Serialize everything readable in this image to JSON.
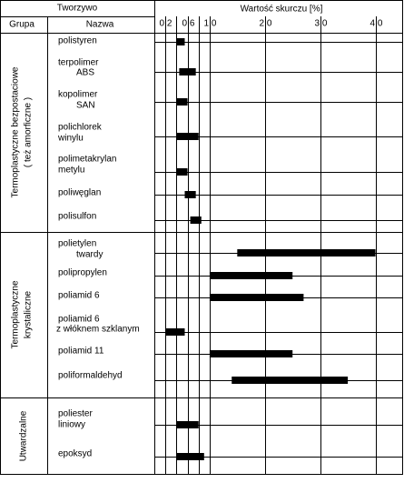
{
  "chart_data": {
    "type": "range-bar",
    "header": {
      "material": "Tworzywo",
      "group": "Grupa",
      "name": "Nazwa",
      "value_title": "Wartość skurczu [%]"
    },
    "xlim": [
      0,
      4.5
    ],
    "xticks": [
      {
        "value": 0.2,
        "label": "0,2"
      },
      0.4,
      {
        "value": 0.6,
        "label": "0,6"
      },
      0.8,
      {
        "value": 1.0,
        "label": "1,0"
      },
      {
        "value": 2.0,
        "label": "2,0"
      },
      {
        "value": 3.0,
        "label": "3,0"
      },
      {
        "value": 4.0,
        "label": "4,0"
      }
    ],
    "hidden_tick_labels": [
      0.4,
      0.8
    ],
    "color": "#000000",
    "groups": [
      {
        "label": [
          "Termoplastyczne bezpostaciowe",
          "( też amorficzne )"
        ],
        "items": [
          {
            "name": [
              "polistyren"
            ],
            "min": 0.4,
            "max": 0.55
          },
          {
            "name": [
              "terpolimer",
              "ABS"
            ],
            "min": 0.45,
            "max": 0.75
          },
          {
            "name": [
              "kopolimer",
              "SAN"
            ],
            "min": 0.4,
            "max": 0.6
          },
          {
            "name": [
              "polichlorek",
              "winylu"
            ],
            "min": 0.4,
            "max": 0.8
          },
          {
            "name": [
              "polimetakrylan",
              "metylu"
            ],
            "min": 0.4,
            "max": 0.6
          },
          {
            "name": [
              "poliwęglan"
            ],
            "min": 0.55,
            "max": 0.75
          },
          {
            "name": [
              "polisulfon"
            ],
            "min": 0.65,
            "max": 0.85
          }
        ]
      },
      {
        "label": [
          "Termoplastyczne",
          "krystaliczne"
        ],
        "items": [
          {
            "name": [
              "polietylen",
              "twardy"
            ],
            "min": 1.5,
            "max": 4.0
          },
          {
            "name": [
              "polipropylen"
            ],
            "min": 1.0,
            "max": 2.5
          },
          {
            "name": [
              "poliamid 6"
            ],
            "min": 1.0,
            "max": 2.7
          },
          {
            "name": [
              "poliamid 6",
              "z włóknem szklanym"
            ],
            "min": 0.2,
            "max": 0.55
          },
          {
            "name": [
              "poliamid 11"
            ],
            "min": 1.0,
            "max": 2.5
          },
          {
            "name": [
              "poliformaldehyd"
            ],
            "min": 1.4,
            "max": 3.5
          }
        ]
      },
      {
        "label": [
          "Utwardzalne"
        ],
        "items": [
          {
            "name": [
              "poliester",
              "liniowy"
            ],
            "min": 0.4,
            "max": 0.8
          },
          {
            "name": [
              "epoksyd"
            ],
            "min": 0.4,
            "max": 0.9
          }
        ]
      }
    ]
  }
}
